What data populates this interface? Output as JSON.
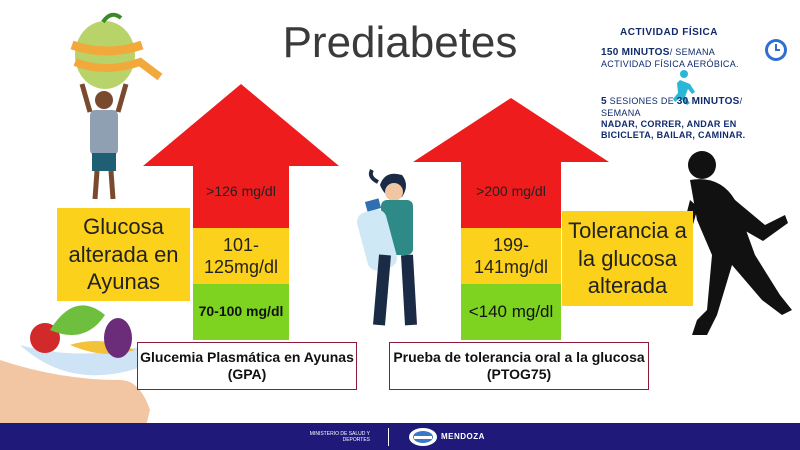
{
  "title": "Prediabetes",
  "left_box": {
    "label": "Glucosa alterada en Ayunas",
    "high": ">126 mg/dl",
    "mid": "101-125mg/dl",
    "low": "70-100 mg/dl",
    "test": "Glucemia Plasmática en Ayunas (GPA)"
  },
  "right_box": {
    "label": "Tolerancia a la glucosa alterada",
    "high": ">200 mg/dl",
    "mid": "199-141mg/dl",
    "low": "<140 mg/dl",
    "test": "Prueba de tolerancia oral a la glucosa (PTOG75)"
  },
  "activity": {
    "title": "ACTIVIDAD FÍSICA",
    "line1_bold": "150 MINUTOS",
    "line1_rest": "/ SEMANA",
    "line1_sub": "ACTIVIDAD FÍSICA AERÓBICA.",
    "line2_bold_a": "5",
    "line2_mid": " SESIONES DE ",
    "line2_bold_b": "30 MINUTOS",
    "line2_rest": "/",
    "line2_sub1": "SEMANA",
    "line2_sub2": "NADAR, CORRER, ANDAR EN BICICLETA, BAILAR, CAMINAR."
  },
  "footer": {
    "ministry": "MINISTERIO DE SALUD Y DEPORTES",
    "province": "MENDOZA"
  },
  "colors": {
    "red": "#ee1c1c",
    "yellow": "#fcd11c",
    "green": "#7ed321",
    "navy": "#1f1a7a"
  }
}
